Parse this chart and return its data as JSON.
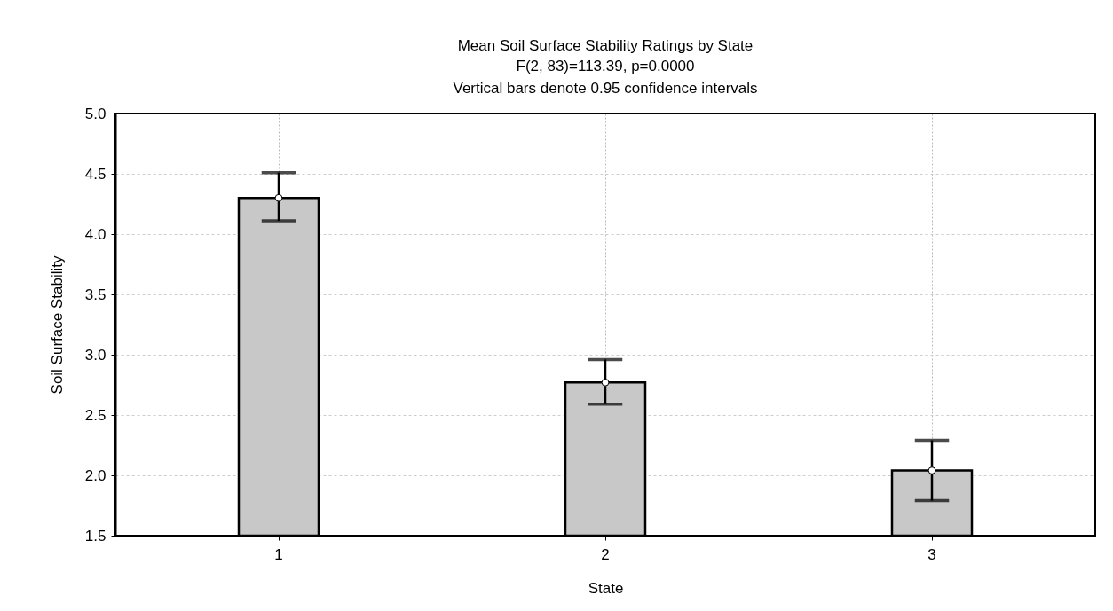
{
  "chart_data": {
    "type": "bar",
    "title": "Mean Soil Surface Stability Ratings by State",
    "subtitle": "F(2, 83)=113.39, p=0.0000",
    "annotations": [
      "Vertical bars denote 0.95 confidence intervals"
    ],
    "xlabel": "State",
    "ylabel": "Soil Surface Stability",
    "categories": [
      "1",
      "2",
      "3"
    ],
    "series": [
      {
        "type": "bar",
        "color": "#c8c8c8",
        "values": [
          4.3,
          2.77,
          2.04
        ],
        "errors": [
          [
            4.11,
            4.51
          ],
          [
            2.59,
            2.96
          ],
          [
            1.79,
            2.29
          ]
        ]
      },
      {
        "type": "scatter",
        "color": "#ffffff",
        "marker": "circle",
        "x": [
          "1",
          "2",
          "3"
        ],
        "values": [
          4.3,
          2.77,
          2.04
        ]
      }
    ],
    "ylim": [
      1.5,
      5.0
    ],
    "yticks": [
      1.5,
      {
        "value": 2.0,
        "label": "2.0"
      },
      2.5,
      {
        "value": 3.0,
        "label": "3.0"
      },
      3.5,
      {
        "value": 4.0,
        "label": "4.0"
      },
      4.5,
      {
        "value": 5.0,
        "label": "5.0"
      }
    ],
    "grid": true
  }
}
